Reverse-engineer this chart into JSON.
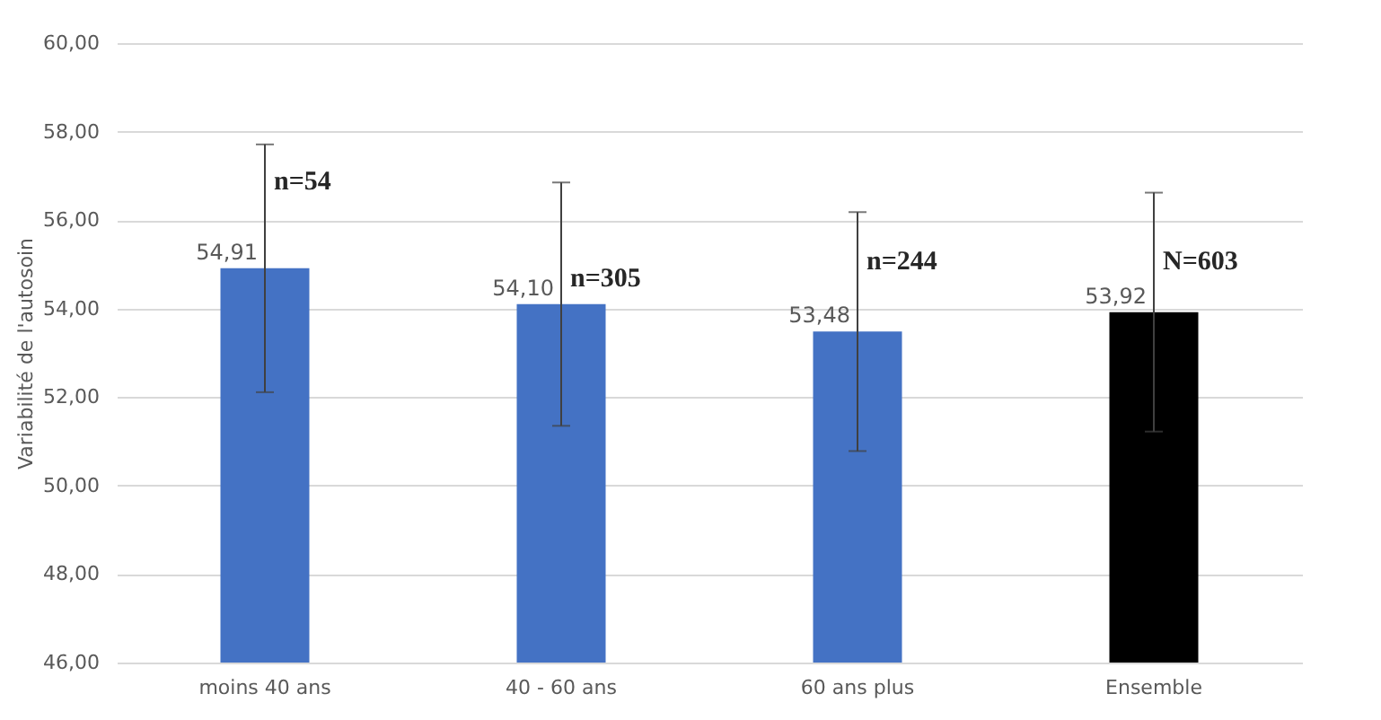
{
  "chart_data": {
    "type": "bar",
    "ylabel": "Variabilité de l'autosoin",
    "categories": [
      "moins 40 ans",
      "40 - 60 ans",
      "60 ans plus",
      "Ensemble"
    ],
    "values": [
      54.91,
      54.1,
      53.48,
      53.92
    ],
    "colors": [
      "#4472c4",
      "#4472c4",
      "#4472c4",
      "#000000"
    ],
    "errors": [
      2.8,
      2.75,
      2.7,
      2.7
    ],
    "value_labels": [
      "54,91",
      "54,10",
      "53,48",
      "53,92"
    ],
    "ylim": [
      46,
      60
    ],
    "yticks": [
      {
        "value": 46,
        "label": "46,00"
      },
      {
        "value": 48,
        "label": "48,00"
      },
      {
        "value": 50,
        "label": "50,00"
      },
      {
        "value": 52,
        "label": "52,00"
      },
      {
        "value": 54,
        "label": "54,00"
      },
      {
        "value": 56,
        "label": "56,00"
      },
      {
        "value": 58,
        "label": "58,00"
      },
      {
        "value": 60,
        "label": "60,00"
      }
    ],
    "grid": "y",
    "annotations": [
      {
        "text": "n=54",
        "x": "moins 40 ans",
        "y": 56.9
      },
      {
        "text": "n=305",
        "x": "40 - 60 ans",
        "y": 54.7
      },
      {
        "text": "n=244",
        "x": "60 ans plus",
        "y": 55.1
      },
      {
        "text": "N=603",
        "x": "Ensemble",
        "y": 55.1
      }
    ]
  }
}
